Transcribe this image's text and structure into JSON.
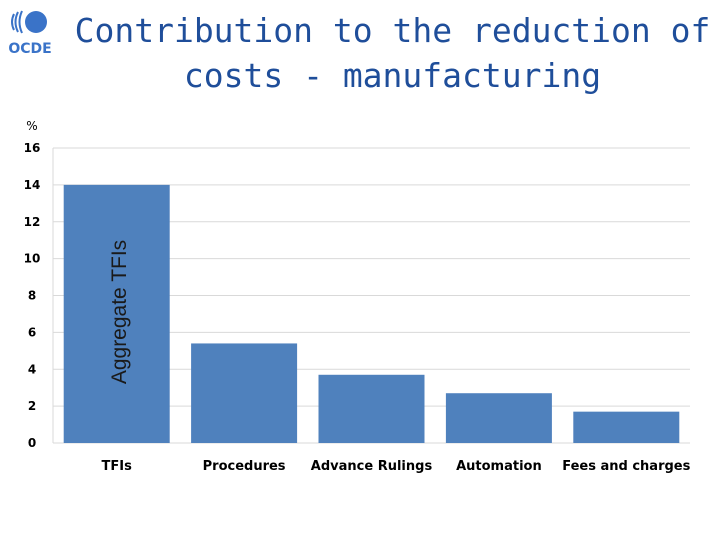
{
  "title": "Contribution to the reduction of costs - manufacturing",
  "logo": {
    "text": "OCDE",
    "icon": "oecd-logo-icon"
  },
  "colors": {
    "bar": "#4f81bd",
    "title": "#1f4e9a",
    "grid": "#d9d9d9",
    "logo": "#3a73c8"
  },
  "chart_data": {
    "type": "bar",
    "title": "Contribution to the reduction of costs - manufacturing",
    "ylabel": "%",
    "categories": [
      "TFIs",
      "Procedures",
      "Advance Rulings",
      "Automation",
      "Fees and charges"
    ],
    "values": [
      14,
      5.4,
      3.7,
      2.7,
      1.7
    ],
    "ylim": [
      0,
      16
    ],
    "yticks": [
      0,
      2,
      4,
      6,
      8,
      10,
      12,
      14,
      16
    ],
    "bar_annotation": "Aggregate TFIs",
    "grid": true,
    "legend": "none"
  }
}
